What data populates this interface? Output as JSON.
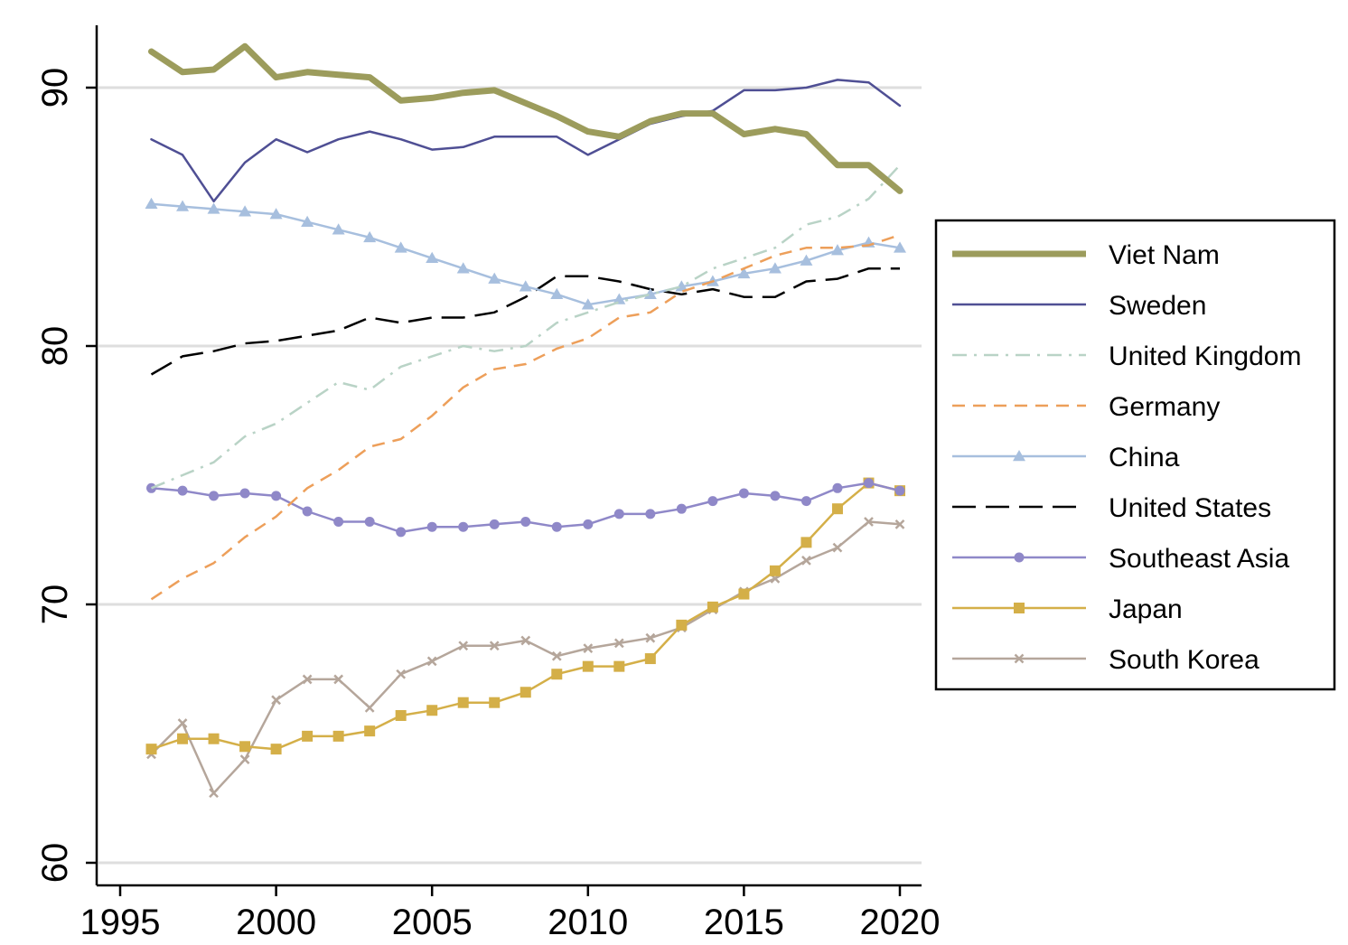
{
  "chart_data": {
    "type": "line",
    "title": "",
    "xlabel": "",
    "ylabel": "",
    "xlim": [
      1995,
      2020
    ],
    "ylim": [
      60,
      92.5
    ],
    "xticks": [
      1995,
      2000,
      2005,
      2010,
      2015,
      2020
    ],
    "yticks": [
      60,
      70,
      80,
      90
    ],
    "grid": "horizontal",
    "legend_position": "right",
    "x": [
      1996,
      1997,
      1998,
      1999,
      2000,
      2001,
      2002,
      2003,
      2004,
      2005,
      2006,
      2007,
      2008,
      2009,
      2010,
      2011,
      2012,
      2013,
      2014,
      2015,
      2016,
      2017,
      2018,
      2019,
      2020
    ],
    "series": [
      {
        "name": "Viet Nam",
        "color": "#9c9c5c",
        "width": 7,
        "dash": "",
        "marker": "none",
        "values": [
          91.4,
          90.6,
          90.7,
          91.6,
          90.4,
          90.6,
          90.5,
          90.4,
          89.5,
          89.6,
          89.8,
          89.9,
          89.4,
          88.9,
          88.3,
          88.1,
          88.7,
          89.0,
          89.0,
          88.2,
          88.4,
          88.2,
          87.0,
          87.0,
          86.0
        ]
      },
      {
        "name": "Sweden",
        "color": "#4f4f94",
        "width": 2.5,
        "dash": "",
        "marker": "none",
        "values": [
          88.0,
          87.4,
          85.6,
          87.1,
          88.0,
          87.5,
          88.0,
          88.3,
          88.0,
          87.6,
          87.7,
          88.1,
          88.1,
          88.1,
          87.4,
          88.0,
          88.6,
          88.9,
          89.1,
          89.9,
          89.9,
          90.0,
          90.3,
          90.2,
          89.3
        ]
      },
      {
        "name": "United Kingdom",
        "color": "#b9d3c6",
        "width": 2.5,
        "dash": "16 8 3 8",
        "marker": "none",
        "values": [
          74.5,
          75.0,
          75.5,
          76.5,
          77.0,
          77.8,
          78.6,
          78.3,
          79.2,
          79.6,
          80.0,
          79.8,
          80.0,
          80.9,
          81.3,
          81.7,
          82.0,
          82.3,
          83.0,
          83.4,
          83.8,
          84.7,
          85.0,
          85.7,
          87.0
        ]
      },
      {
        "name": "Germany",
        "color": "#ed9f5a",
        "width": 2.5,
        "dash": "14 9",
        "marker": "none",
        "values": [
          70.2,
          71.0,
          71.6,
          72.6,
          73.4,
          74.5,
          75.2,
          76.1,
          76.4,
          77.3,
          78.4,
          79.1,
          79.3,
          79.9,
          80.3,
          81.1,
          81.3,
          82.1,
          82.5,
          83.0,
          83.5,
          83.8,
          83.8,
          83.9,
          84.3
        ]
      },
      {
        "name": "China",
        "color": "#a7bfde",
        "width": 2.5,
        "dash": "",
        "marker": "triangle",
        "values": [
          85.5,
          85.4,
          85.3,
          85.2,
          85.1,
          84.8,
          84.5,
          84.2,
          83.8,
          83.4,
          83.0,
          82.6,
          82.3,
          82.0,
          81.6,
          81.8,
          82.0,
          82.3,
          82.5,
          82.8,
          83.0,
          83.3,
          83.7,
          84.0,
          83.8
        ]
      },
      {
        "name": "United States",
        "color": "#000000",
        "width": 2.5,
        "dash": "26 11",
        "marker": "none",
        "values": [
          78.9,
          79.6,
          79.8,
          80.1,
          80.2,
          80.4,
          80.6,
          81.1,
          80.9,
          81.1,
          81.1,
          81.3,
          81.9,
          82.7,
          82.7,
          82.5,
          82.2,
          82.0,
          82.2,
          81.9,
          81.9,
          82.5,
          82.6,
          83.0,
          83.0
        ]
      },
      {
        "name": "Southeast Asia",
        "color": "#8f88c8",
        "width": 2.5,
        "dash": "",
        "marker": "circle",
        "values": [
          74.5,
          74.4,
          74.2,
          74.3,
          74.2,
          73.6,
          73.2,
          73.2,
          72.8,
          73.0,
          73.0,
          73.1,
          73.2,
          73.0,
          73.1,
          73.5,
          73.5,
          73.7,
          74.0,
          74.3,
          74.2,
          74.0,
          74.5,
          74.7,
          74.4
        ]
      },
      {
        "name": "Japan",
        "color": "#d4af48",
        "width": 2.5,
        "dash": "",
        "marker": "square",
        "values": [
          64.4,
          64.8,
          64.8,
          64.5,
          64.4,
          64.9,
          64.9,
          65.1,
          65.7,
          65.9,
          66.2,
          66.2,
          66.6,
          67.3,
          67.6,
          67.6,
          67.9,
          69.2,
          69.9,
          70.4,
          71.3,
          72.4,
          73.7,
          74.7,
          74.4
        ]
      },
      {
        "name": "South Korea",
        "color": "#b5a69b",
        "width": 2.5,
        "dash": "",
        "marker": "x",
        "values": [
          64.2,
          65.4,
          62.7,
          64.0,
          66.3,
          67.1,
          67.1,
          66.0,
          67.3,
          67.8,
          68.4,
          68.4,
          68.6,
          68.0,
          68.3,
          68.5,
          68.7,
          69.1,
          69.8,
          70.5,
          71.0,
          71.7,
          72.2,
          73.2,
          73.1
        ]
      }
    ]
  }
}
